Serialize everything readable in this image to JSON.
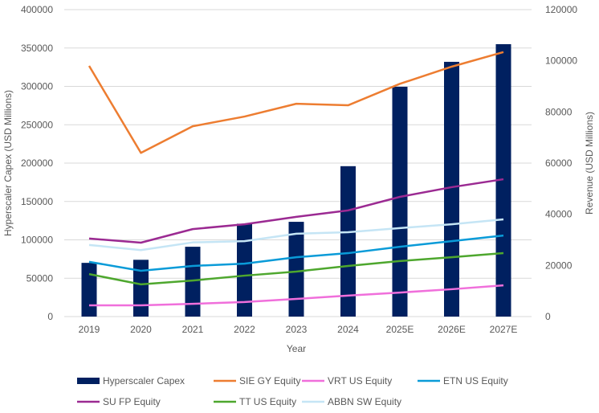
{
  "chart_data": {
    "type": "bar+line",
    "categories": [
      "2019",
      "2020",
      "2021",
      "2022",
      "2023",
      "2024",
      "2025E",
      "2026E",
      "2027E"
    ],
    "xlabel": "Year",
    "ylabel": "Hyperscaler Capex (USD Millions)",
    "y2label": "Revenue (USD Millions)",
    "ylim": [
      0,
      400000
    ],
    "y2lim": [
      0,
      120000
    ],
    "yticks": [
      0,
      50000,
      100000,
      150000,
      200000,
      250000,
      300000,
      350000,
      400000
    ],
    "y2ticks": [
      0,
      20000,
      40000,
      60000,
      80000,
      100000,
      120000
    ],
    "grid": true,
    "legend_position": "bottom",
    "bar_series": {
      "name": "Hyperscaler Capex",
      "color": "#002060",
      "axis": "left",
      "values": [
        70000,
        74000,
        91000,
        121000,
        123500,
        196000,
        299500,
        332000,
        355000
      ]
    },
    "line_series": [
      {
        "name": "SIE GY Equity",
        "color": "#ED7D31",
        "axis": "right",
        "values": [
          98000,
          64000,
          74400,
          78200,
          83200,
          82600,
          91000,
          97700,
          103400
        ]
      },
      {
        "name": "VRT US Equity",
        "color": "#F06FDB",
        "axis": "right",
        "values": [
          4400,
          4400,
          5000,
          5700,
          6900,
          8200,
          9400,
          10700,
          12200
        ]
      },
      {
        "name": "ETN US Equity",
        "color": "#0A9BD8",
        "axis": "right",
        "values": [
          21400,
          17900,
          19800,
          20700,
          23200,
          24800,
          27300,
          29500,
          31700
        ]
      },
      {
        "name": "SU FP Equity",
        "color": "#9B2A92",
        "axis": "right",
        "values": [
          30500,
          28900,
          34200,
          36100,
          39000,
          41500,
          46800,
          50600,
          53700
        ]
      },
      {
        "name": "TT US Equity",
        "color": "#4EA72E",
        "axis": "right",
        "values": [
          16600,
          12600,
          14100,
          16000,
          17600,
          19800,
          21700,
          23200,
          24800
        ]
      },
      {
        "name": "ABBN SW Equity",
        "color": "#C5E5F5",
        "axis": "right",
        "values": [
          28000,
          26000,
          29000,
          29500,
          32400,
          33000,
          34600,
          36100,
          38000
        ]
      }
    ]
  }
}
